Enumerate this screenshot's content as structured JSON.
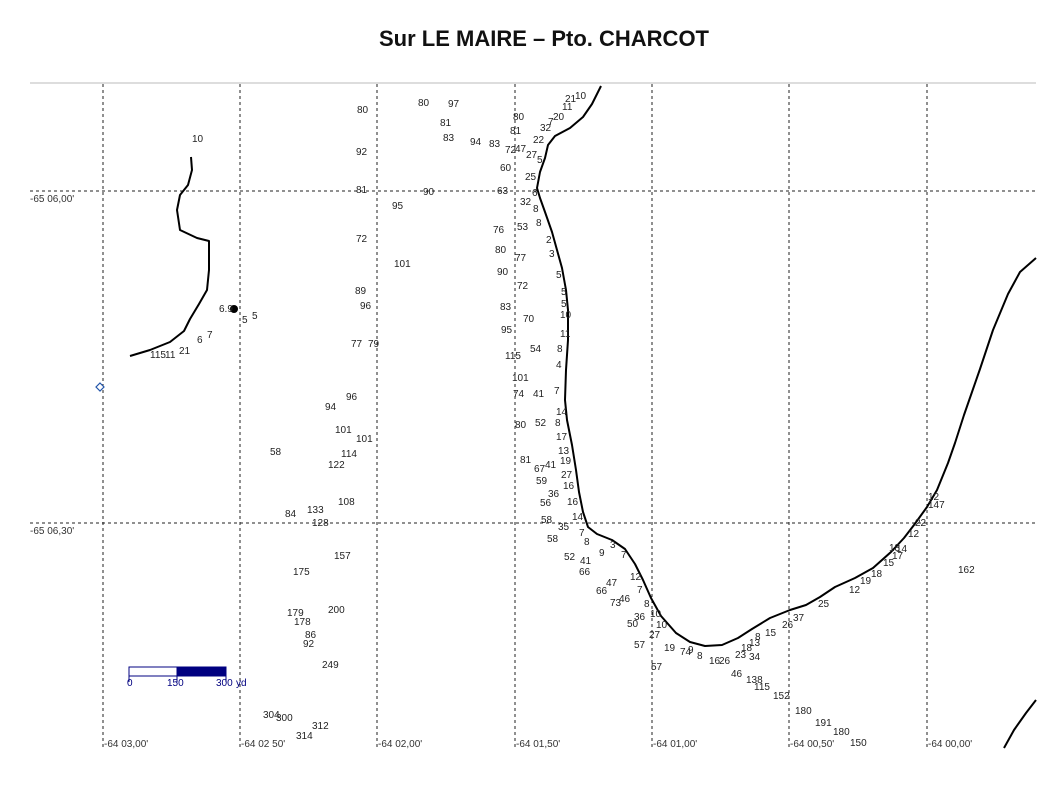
{
  "title": "Sur LE MAIRE – Pto. CHARCOT",
  "latitude_labels": [
    "-65 06,00'",
    "-65 06,30'"
  ],
  "longitude_labels": [
    "-64 03,00'",
    "-64 02 50'",
    "-64 02,00'",
    "-64 01,50'",
    "-64 01,00'",
    "-64 00,50'",
    "-64 00,00'"
  ],
  "scale_bar": {
    "labels": [
      "0",
      "150",
      "300"
    ],
    "unit": "yd"
  },
  "soundings": [
    "10",
    "80",
    "80",
    "97",
    "81",
    "83",
    "94",
    "83",
    "80",
    "81",
    "92",
    "21",
    "10",
    "11",
    "20",
    "7",
    "32",
    "72",
    "47",
    "22",
    "27",
    "60",
    "25",
    "5",
    "81",
    "90",
    "63",
    "6",
    "95",
    "32",
    "8",
    "76",
    "53",
    "8",
    "72",
    "2",
    "80",
    "77",
    "3",
    "101",
    "90",
    "5",
    "72",
    "89",
    "5",
    "96",
    "83",
    "5",
    "70",
    "6.9",
    "10",
    "5",
    "5",
    "11",
    "95",
    "8",
    "7",
    "6",
    "21",
    "115",
    "11",
    "77",
    "79",
    "54",
    "4",
    "115",
    "101",
    "74",
    "41",
    "7",
    "96",
    "94",
    "14",
    "101",
    "80",
    "52",
    "8",
    "101",
    "17",
    "58",
    "114",
    "13",
    "122",
    "81",
    "67",
    "41",
    "19",
    "27",
    "59",
    "16",
    "36",
    "56",
    "16",
    "108",
    "84",
    "133",
    "58",
    "14",
    "128",
    "35",
    "7",
    "58",
    "8",
    "3",
    "52",
    "9",
    "7",
    "41",
    "157",
    "66",
    "175",
    "12",
    "66",
    "47",
    "7",
    "73",
    "46",
    "8",
    "179",
    "200",
    "178",
    "36",
    "50",
    "10",
    "86",
    "10",
    "27",
    "92",
    "57",
    "19",
    "74",
    "9",
    "8",
    "16",
    "26",
    "18",
    "13",
    "23",
    "34",
    "249",
    "57",
    "46",
    "138",
    "115",
    "304",
    "300",
    "152",
    "312",
    "314",
    "180",
    "191",
    "180",
    "150",
    "15",
    "37",
    "8",
    "26",
    "25",
    "18",
    "12",
    "19",
    "15",
    "17",
    "18",
    "14",
    "22",
    "12",
    "12",
    "147",
    "162"
  ]
}
